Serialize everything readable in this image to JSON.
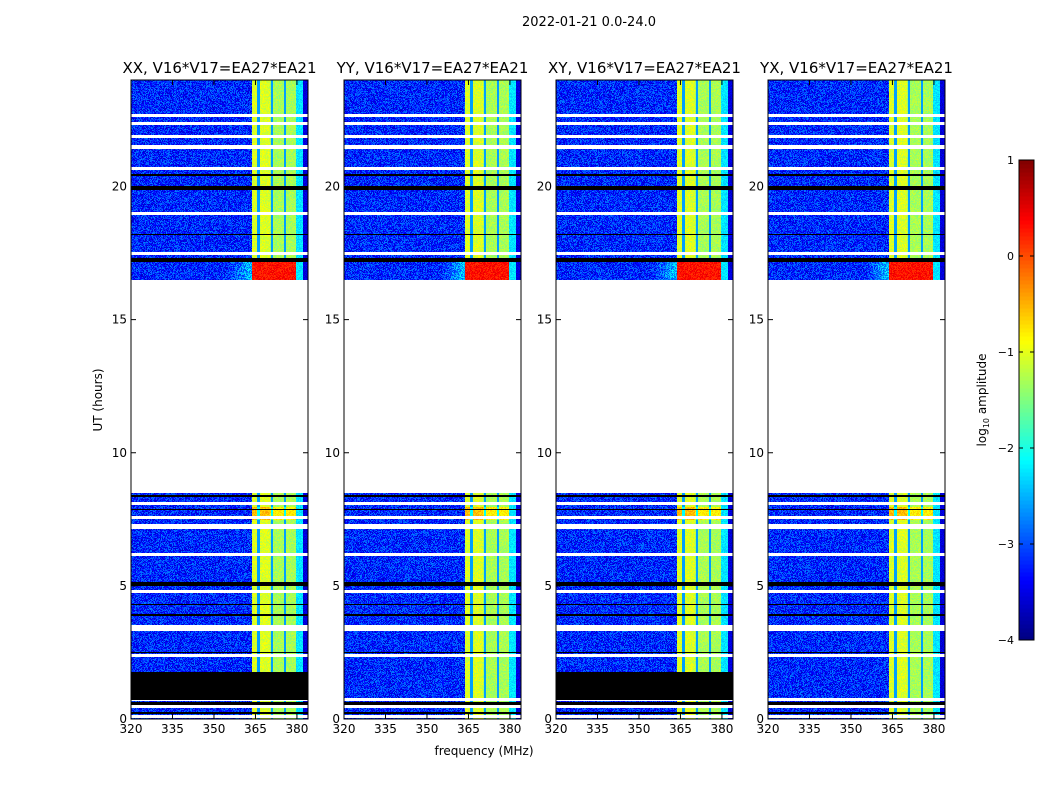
{
  "chart_data": {
    "type": "heatmap",
    "suptitle": "2022-01-21 0.0-24.0",
    "xlabel": "frequency (MHz)",
    "ylabel": "UT (hours)",
    "xlim": [
      320,
      384
    ],
    "ylim": [
      0,
      24
    ],
    "xticks": [
      "320",
      "335",
      "350",
      "365",
      "380"
    ],
    "xtick_values": [
      320,
      335,
      350,
      365,
      380
    ],
    "yticks": [
      "0",
      "5",
      "10",
      "15",
      "20"
    ],
    "ytick_values": [
      0,
      5,
      10,
      15,
      20
    ],
    "panels": [
      {
        "title": "XX, V16*V17=EA27*EA21",
        "pol": "XX",
        "show_ylabel": true
      },
      {
        "title": "YY, V16*V17=EA27*EA21",
        "pol": "YY",
        "show_xlabel": true
      },
      {
        "title": "XY, V16*V17=EA27*EA21",
        "pol": "XY"
      },
      {
        "title": "YX, V16*V17=EA27*EA21",
        "pol": "YX"
      }
    ],
    "colormap": "jet",
    "colorbar": {
      "label": "log10 amplitude",
      "label_main": "log",
      "label_sub": "10",
      "label_rest": " amplitude",
      "range": [
        -4,
        1
      ],
      "ticks": [
        "1",
        "0",
        "−1",
        "−2",
        "−3",
        "−4"
      ],
      "tick_values": [
        1,
        0,
        -1,
        -2,
        -3,
        -4
      ]
    },
    "features": {
      "background_log_amp": -3.2,
      "rfi_band_mhz": [
        363.5,
        379.5
      ],
      "rfi_band_log_amp": -1.2,
      "rfi_peak_hours": [
        16.5,
        17.3
      ],
      "rfi_peak_log_amp": 0.1,
      "flagged_gap_hours": [
        8.5,
        16.5
      ],
      "white_flag_hours": [
        0.1,
        0.5,
        0.75,
        2.4,
        3.4,
        3.5,
        4.8,
        6.2,
        7.2,
        7.3,
        7.6,
        8.1,
        17.5,
        19.0,
        20.7,
        21.5,
        21.9,
        22.4,
        22.7
      ],
      "black_flag_hours": [
        [
          0.2,
          0.3
        ],
        [
          0.55,
          0.65
        ],
        [
          0.75,
          1.8
        ],
        [
          2.5,
          2.55
        ],
        [
          3.9,
          3.95
        ],
        [
          4.3,
          4.35
        ],
        [
          5.0,
          5.15
        ],
        [
          7.85,
          7.9
        ],
        [
          8.35,
          8.45
        ],
        [
          17.2,
          17.35
        ],
        [
          18.2,
          18.25
        ],
        [
          19.9,
          20.05
        ],
        [
          20.4,
          20.5
        ]
      ]
    }
  }
}
